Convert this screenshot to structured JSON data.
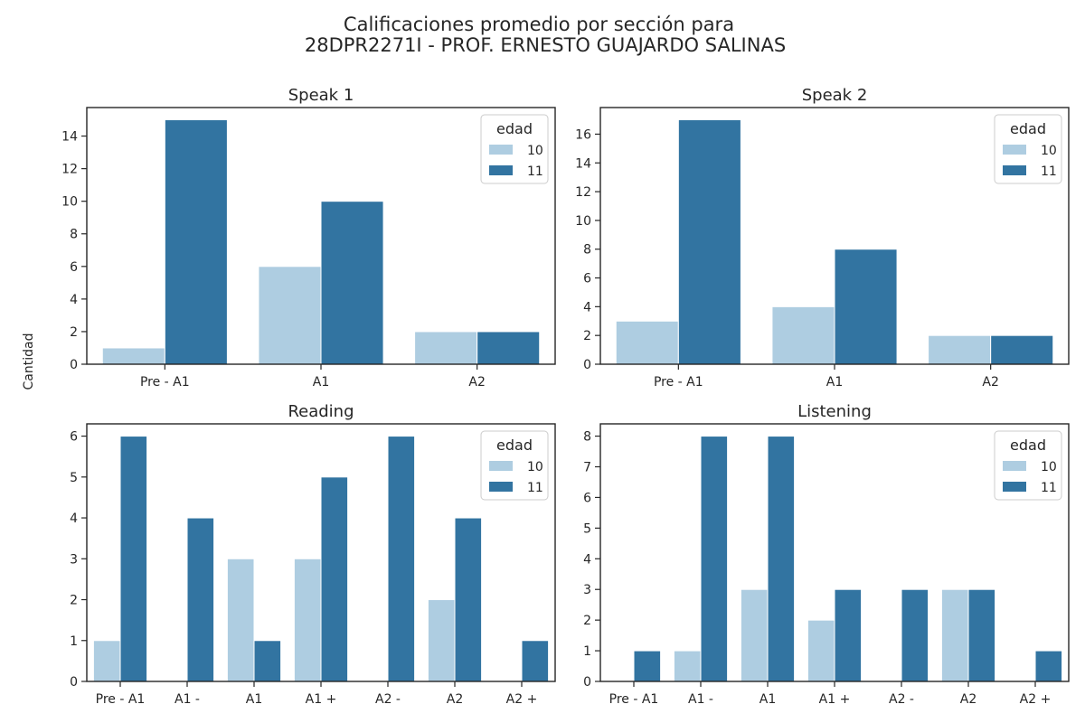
{
  "figure": {
    "title_line1": "Calificaciones promedio por sección para",
    "title_line2": "28DPR2271I - PROF. ERNESTO GUAJARDO SALINAS",
    "ylabel": "Cantidad"
  },
  "colors": {
    "10": "#aecde1",
    "11": "#3274a1"
  },
  "chart_data": [
    {
      "type": "bar",
      "title": "Speak 1",
      "categories": [
        "Pre - A1",
        "A1",
        "A2"
      ],
      "series": [
        {
          "name": "10",
          "values": [
            1,
            6,
            2
          ]
        },
        {
          "name": "11",
          "values": [
            15,
            10,
            2
          ]
        }
      ],
      "ylim": [
        0,
        15.75
      ],
      "yticks": [
        0,
        2,
        4,
        6,
        8,
        10,
        12,
        14
      ],
      "legend": {
        "title": "edad",
        "placement": "top-right"
      }
    },
    {
      "type": "bar",
      "title": "Speak 2",
      "categories": [
        "Pre - A1",
        "A1",
        "A2"
      ],
      "series": [
        {
          "name": "10",
          "values": [
            3,
            4,
            2
          ]
        },
        {
          "name": "11",
          "values": [
            17,
            8,
            2
          ]
        }
      ],
      "ylim": [
        0,
        17.85
      ],
      "yticks": [
        0,
        2,
        4,
        6,
        8,
        10,
        12,
        14,
        16
      ],
      "legend": {
        "title": "edad",
        "placement": "top-right"
      }
    },
    {
      "type": "bar",
      "title": "Reading",
      "categories": [
        "Pre - A1",
        "A1 -",
        "A1",
        "A1 +",
        "A2 -",
        "A2",
        "A2 +"
      ],
      "series": [
        {
          "name": "10",
          "values": [
            1,
            0,
            3,
            3,
            0,
            2,
            0
          ]
        },
        {
          "name": "11",
          "values": [
            6,
            4,
            1,
            5,
            6,
            4,
            1
          ]
        }
      ],
      "ylim": [
        0,
        6.3
      ],
      "yticks": [
        0,
        1,
        2,
        3,
        4,
        5,
        6
      ],
      "legend": {
        "title": "edad",
        "placement": "top-right"
      }
    },
    {
      "type": "bar",
      "title": "Listening",
      "categories": [
        "Pre - A1",
        "A1 -",
        "A1",
        "A1 +",
        "A2 -",
        "A2",
        "A2 +"
      ],
      "series": [
        {
          "name": "10",
          "values": [
            0,
            1,
            3,
            2,
            0,
            3,
            0
          ]
        },
        {
          "name": "11",
          "values": [
            1,
            8,
            8,
            3,
            3,
            3,
            1
          ]
        }
      ],
      "ylim": [
        0,
        8.4
      ],
      "yticks": [
        0,
        1,
        2,
        3,
        4,
        5,
        6,
        7,
        8
      ],
      "legend": {
        "title": "edad",
        "placement": "top-right"
      }
    }
  ]
}
